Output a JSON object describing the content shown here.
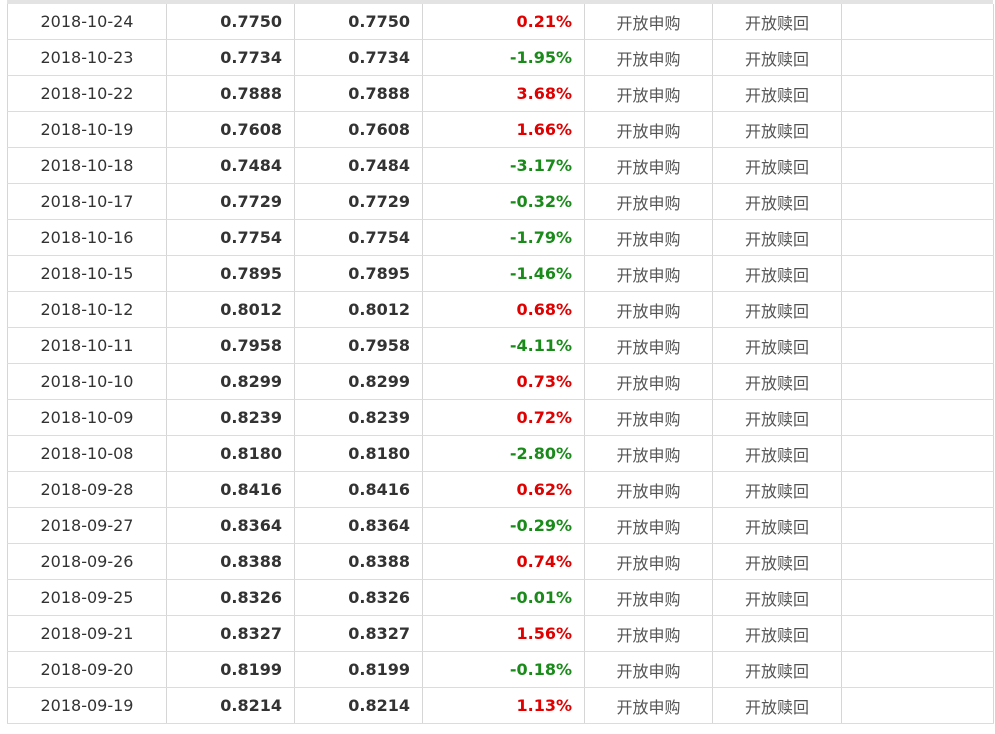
{
  "colors": {
    "up": "#e00000",
    "down": "#1a8a1a",
    "text": "#333333"
  },
  "rows": [
    {
      "date": "2018-10-24",
      "nav": "0.7750",
      "acc_nav": "0.7750",
      "change": "0.21%",
      "dir": "up",
      "purchase": "开放申购",
      "redeem": "开放赎回"
    },
    {
      "date": "2018-10-23",
      "nav": "0.7734",
      "acc_nav": "0.7734",
      "change": "-1.95%",
      "dir": "down",
      "purchase": "开放申购",
      "redeem": "开放赎回"
    },
    {
      "date": "2018-10-22",
      "nav": "0.7888",
      "acc_nav": "0.7888",
      "change": "3.68%",
      "dir": "up",
      "purchase": "开放申购",
      "redeem": "开放赎回"
    },
    {
      "date": "2018-10-19",
      "nav": "0.7608",
      "acc_nav": "0.7608",
      "change": "1.66%",
      "dir": "up",
      "purchase": "开放申购",
      "redeem": "开放赎回"
    },
    {
      "date": "2018-10-18",
      "nav": "0.7484",
      "acc_nav": "0.7484",
      "change": "-3.17%",
      "dir": "down",
      "purchase": "开放申购",
      "redeem": "开放赎回"
    },
    {
      "date": "2018-10-17",
      "nav": "0.7729",
      "acc_nav": "0.7729",
      "change": "-0.32%",
      "dir": "down",
      "purchase": "开放申购",
      "redeem": "开放赎回"
    },
    {
      "date": "2018-10-16",
      "nav": "0.7754",
      "acc_nav": "0.7754",
      "change": "-1.79%",
      "dir": "down",
      "purchase": "开放申购",
      "redeem": "开放赎回"
    },
    {
      "date": "2018-10-15",
      "nav": "0.7895",
      "acc_nav": "0.7895",
      "change": "-1.46%",
      "dir": "down",
      "purchase": "开放申购",
      "redeem": "开放赎回"
    },
    {
      "date": "2018-10-12",
      "nav": "0.8012",
      "acc_nav": "0.8012",
      "change": "0.68%",
      "dir": "up",
      "purchase": "开放申购",
      "redeem": "开放赎回"
    },
    {
      "date": "2018-10-11",
      "nav": "0.7958",
      "acc_nav": "0.7958",
      "change": "-4.11%",
      "dir": "down",
      "purchase": "开放申购",
      "redeem": "开放赎回"
    },
    {
      "date": "2018-10-10",
      "nav": "0.8299",
      "acc_nav": "0.8299",
      "change": "0.73%",
      "dir": "up",
      "purchase": "开放申购",
      "redeem": "开放赎回"
    },
    {
      "date": "2018-10-09",
      "nav": "0.8239",
      "acc_nav": "0.8239",
      "change": "0.72%",
      "dir": "up",
      "purchase": "开放申购",
      "redeem": "开放赎回"
    },
    {
      "date": "2018-10-08",
      "nav": "0.8180",
      "acc_nav": "0.8180",
      "change": "-2.80%",
      "dir": "down",
      "purchase": "开放申购",
      "redeem": "开放赎回"
    },
    {
      "date": "2018-09-28",
      "nav": "0.8416",
      "acc_nav": "0.8416",
      "change": "0.62%",
      "dir": "up",
      "purchase": "开放申购",
      "redeem": "开放赎回"
    },
    {
      "date": "2018-09-27",
      "nav": "0.8364",
      "acc_nav": "0.8364",
      "change": "-0.29%",
      "dir": "down",
      "purchase": "开放申购",
      "redeem": "开放赎回"
    },
    {
      "date": "2018-09-26",
      "nav": "0.8388",
      "acc_nav": "0.8388",
      "change": "0.74%",
      "dir": "up",
      "purchase": "开放申购",
      "redeem": "开放赎回"
    },
    {
      "date": "2018-09-25",
      "nav": "0.8326",
      "acc_nav": "0.8326",
      "change": "-0.01%",
      "dir": "down",
      "purchase": "开放申购",
      "redeem": "开放赎回"
    },
    {
      "date": "2018-09-21",
      "nav": "0.8327",
      "acc_nav": "0.8327",
      "change": "1.56%",
      "dir": "up",
      "purchase": "开放申购",
      "redeem": "开放赎回"
    },
    {
      "date": "2018-09-20",
      "nav": "0.8199",
      "acc_nav": "0.8199",
      "change": "-0.18%",
      "dir": "down",
      "purchase": "开放申购",
      "redeem": "开放赎回"
    },
    {
      "date": "2018-09-19",
      "nav": "0.8214",
      "acc_nav": "0.8214",
      "change": "1.13%",
      "dir": "up",
      "purchase": "开放申购",
      "redeem": "开放赎回"
    }
  ]
}
